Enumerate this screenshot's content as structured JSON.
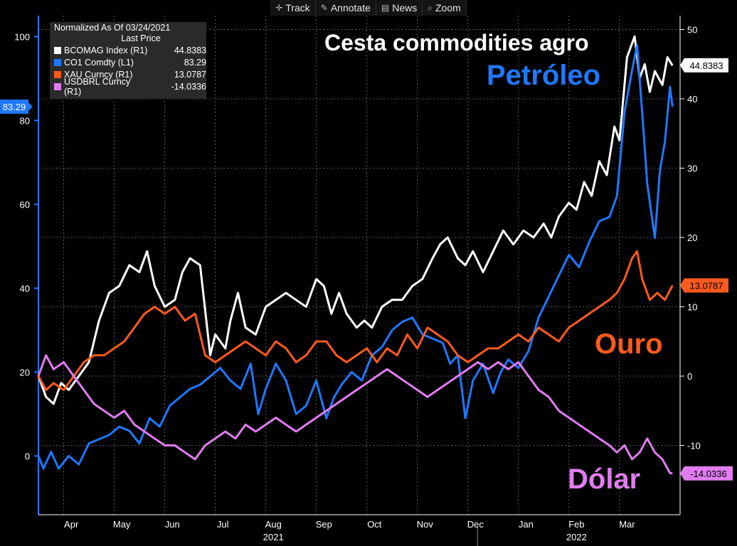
{
  "toolbar": {
    "track": "Track",
    "annotate": "Annotate",
    "news": "News",
    "zoom": "Zoom"
  },
  "legend": {
    "header": "Normalized As Of 03/24/2021",
    "subheader": "Last Price",
    "rows": [
      {
        "name": "BCOMAG Index  (R1)",
        "value": "44.8383",
        "color": "#ffffff"
      },
      {
        "name": "CO1 Comdty  (L1)",
        "value": "83.29",
        "color": "#1e78ff"
      },
      {
        "name": "XAU Curncy  (R1)",
        "value": "13.0787",
        "color": "#ff5a1f"
      },
      {
        "name": "USDBRL Curncy  (R1)",
        "value": "-14.0336",
        "color": "#e07cf0"
      }
    ]
  },
  "annotations": {
    "cesta": "Cesta commodities agro",
    "petroleo": "Petróleo",
    "ouro": "Ouro",
    "dolar": "Dólar"
  },
  "tags": {
    "left": "83.29",
    "bcomag": "44.8383",
    "xau": "13.0787",
    "usdbrl": "-14.0336"
  },
  "chart_data": {
    "type": "line",
    "left_axis": {
      "ticks": [
        0,
        20,
        40,
        60,
        80,
        100
      ],
      "range": [
        -14,
        105
      ]
    },
    "right_axis": {
      "ticks": [
        -10,
        0,
        10,
        20,
        30,
        40,
        50
      ],
      "range": [
        -20,
        52
      ]
    },
    "x_months": [
      "Apr",
      "May",
      "Jun",
      "Jul",
      "Aug",
      "Sep",
      "Oct",
      "Nov",
      "Dec",
      "Jan",
      "Feb",
      "Mar"
    ],
    "x_years": [
      "2021",
      "2022"
    ],
    "x_index_range": [
      0,
      12.7
    ],
    "series": [
      {
        "name": "BCOMAG Index  (R1)",
        "axis": "right",
        "color": "#ffffff",
        "points": [
          [
            0,
            0
          ],
          [
            0.15,
            -3
          ],
          [
            0.3,
            -4
          ],
          [
            0.45,
            -1
          ],
          [
            0.6,
            -2
          ],
          [
            0.8,
            0
          ],
          [
            1,
            2
          ],
          [
            1.2,
            8
          ],
          [
            1.4,
            12
          ],
          [
            1.6,
            13
          ],
          [
            1.8,
            16
          ],
          [
            2.0,
            15
          ],
          [
            2.15,
            18
          ],
          [
            2.3,
            13
          ],
          [
            2.5,
            10
          ],
          [
            2.7,
            11
          ],
          [
            2.85,
            15
          ],
          [
            3.0,
            17
          ],
          [
            3.2,
            16
          ],
          [
            3.4,
            3
          ],
          [
            3.5,
            6
          ],
          [
            3.7,
            4
          ],
          [
            3.8,
            8
          ],
          [
            3.95,
            12
          ],
          [
            4.1,
            7
          ],
          [
            4.3,
            6
          ],
          [
            4.5,
            10
          ],
          [
            4.7,
            11
          ],
          [
            4.9,
            12
          ],
          [
            5.1,
            11
          ],
          [
            5.3,
            10
          ],
          [
            5.5,
            14
          ],
          [
            5.65,
            13
          ],
          [
            5.8,
            9
          ],
          [
            5.95,
            12
          ],
          [
            6.1,
            9
          ],
          [
            6.3,
            7
          ],
          [
            6.45,
            8
          ],
          [
            6.6,
            7
          ],
          [
            6.8,
            10
          ],
          [
            7.0,
            11
          ],
          [
            7.2,
            11
          ],
          [
            7.4,
            13
          ],
          [
            7.6,
            14
          ],
          [
            7.8,
            17
          ],
          [
            7.95,
            19
          ],
          [
            8.1,
            20
          ],
          [
            8.3,
            17
          ],
          [
            8.45,
            16
          ],
          [
            8.6,
            18
          ],
          [
            8.8,
            15
          ],
          [
            9.0,
            18
          ],
          [
            9.2,
            21
          ],
          [
            9.4,
            19
          ],
          [
            9.6,
            21
          ],
          [
            9.8,
            20
          ],
          [
            10.0,
            22
          ],
          [
            10.15,
            20
          ],
          [
            10.3,
            23
          ],
          [
            10.5,
            25
          ],
          [
            10.65,
            24
          ],
          [
            10.8,
            28
          ],
          [
            10.95,
            26
          ],
          [
            11.1,
            31
          ],
          [
            11.25,
            29
          ],
          [
            11.4,
            36
          ],
          [
            11.5,
            34
          ],
          [
            11.65,
            46
          ],
          [
            11.8,
            49
          ],
          [
            11.9,
            43
          ],
          [
            12.0,
            45
          ],
          [
            12.1,
            41
          ],
          [
            12.2,
            44
          ],
          [
            12.35,
            42
          ],
          [
            12.45,
            46
          ],
          [
            12.55,
            44.8
          ]
        ]
      },
      {
        "name": "CO1 Comdty  (L1)",
        "axis": "left",
        "color": "#1e78ff",
        "points": [
          [
            0,
            0
          ],
          [
            0.1,
            -3
          ],
          [
            0.25,
            1
          ],
          [
            0.4,
            -3
          ],
          [
            0.6,
            0
          ],
          [
            0.8,
            -2
          ],
          [
            1.0,
            3
          ],
          [
            1.2,
            4
          ],
          [
            1.4,
            5
          ],
          [
            1.6,
            7
          ],
          [
            1.8,
            6
          ],
          [
            2.0,
            3
          ],
          [
            2.2,
            9
          ],
          [
            2.4,
            7
          ],
          [
            2.6,
            12
          ],
          [
            2.8,
            14
          ],
          [
            3.0,
            16
          ],
          [
            3.2,
            17
          ],
          [
            3.4,
            19
          ],
          [
            3.6,
            21
          ],
          [
            3.8,
            18
          ],
          [
            4.0,
            16
          ],
          [
            4.2,
            22
          ],
          [
            4.35,
            10
          ],
          [
            4.5,
            16
          ],
          [
            4.7,
            22
          ],
          [
            4.9,
            18
          ],
          [
            5.1,
            10
          ],
          [
            5.3,
            12
          ],
          [
            5.5,
            18
          ],
          [
            5.7,
            9
          ],
          [
            5.85,
            14
          ],
          [
            6.0,
            17
          ],
          [
            6.2,
            20
          ],
          [
            6.4,
            18
          ],
          [
            6.6,
            24
          ],
          [
            6.8,
            26
          ],
          [
            7.0,
            30
          ],
          [
            7.2,
            32
          ],
          [
            7.4,
            33
          ],
          [
            7.6,
            29
          ],
          [
            7.8,
            28
          ],
          [
            8.0,
            27
          ],
          [
            8.15,
            22
          ],
          [
            8.3,
            24
          ],
          [
            8.45,
            9
          ],
          [
            8.6,
            18
          ],
          [
            8.8,
            22
          ],
          [
            9.0,
            15
          ],
          [
            9.15,
            20
          ],
          [
            9.3,
            23
          ],
          [
            9.5,
            21
          ],
          [
            9.7,
            25
          ],
          [
            9.9,
            33
          ],
          [
            10.1,
            38
          ],
          [
            10.3,
            43
          ],
          [
            10.5,
            48
          ],
          [
            10.7,
            45
          ],
          [
            10.9,
            51
          ],
          [
            11.1,
            56
          ],
          [
            11.3,
            57
          ],
          [
            11.45,
            62
          ],
          [
            11.6,
            82
          ],
          [
            11.75,
            92
          ],
          [
            11.85,
            98
          ],
          [
            11.95,
            82
          ],
          [
            12.05,
            65
          ],
          [
            12.2,
            52
          ],
          [
            12.3,
            68
          ],
          [
            12.4,
            75
          ],
          [
            12.5,
            88
          ],
          [
            12.55,
            83.29
          ]
        ]
      },
      {
        "name": "XAU Curncy  (R1)",
        "axis": "right",
        "color": "#ff5a1f",
        "points": [
          [
            0,
            0
          ],
          [
            0.15,
            -2
          ],
          [
            0.3,
            -1
          ],
          [
            0.5,
            -2
          ],
          [
            0.7,
            0
          ],
          [
            0.9,
            2
          ],
          [
            1.1,
            3
          ],
          [
            1.3,
            3
          ],
          [
            1.5,
            4
          ],
          [
            1.7,
            5
          ],
          [
            1.9,
            7
          ],
          [
            2.1,
            9
          ],
          [
            2.3,
            10
          ],
          [
            2.5,
            9
          ],
          [
            2.7,
            10
          ],
          [
            2.9,
            8
          ],
          [
            3.1,
            9
          ],
          [
            3.3,
            3
          ],
          [
            3.5,
            2
          ],
          [
            3.7,
            3
          ],
          [
            3.9,
            4
          ],
          [
            4.1,
            5
          ],
          [
            4.3,
            4
          ],
          [
            4.5,
            3
          ],
          [
            4.7,
            5
          ],
          [
            4.9,
            4
          ],
          [
            5.1,
            2
          ],
          [
            5.3,
            3
          ],
          [
            5.5,
            5
          ],
          [
            5.7,
            5
          ],
          [
            5.9,
            3
          ],
          [
            6.1,
            2
          ],
          [
            6.3,
            3
          ],
          [
            6.5,
            4
          ],
          [
            6.7,
            2
          ],
          [
            6.9,
            4
          ],
          [
            7.1,
            3
          ],
          [
            7.3,
            6
          ],
          [
            7.5,
            4
          ],
          [
            7.7,
            7
          ],
          [
            7.9,
            6
          ],
          [
            8.1,
            5
          ],
          [
            8.3,
            3
          ],
          [
            8.5,
            2
          ],
          [
            8.7,
            3
          ],
          [
            8.9,
            4
          ],
          [
            9.1,
            4
          ],
          [
            9.3,
            5
          ],
          [
            9.5,
            6
          ],
          [
            9.7,
            5
          ],
          [
            9.9,
            7
          ],
          [
            10.1,
            6
          ],
          [
            10.3,
            5
          ],
          [
            10.5,
            7
          ],
          [
            10.7,
            8
          ],
          [
            10.9,
            9
          ],
          [
            11.1,
            10
          ],
          [
            11.3,
            11
          ],
          [
            11.45,
            12
          ],
          [
            11.6,
            14
          ],
          [
            11.75,
            17
          ],
          [
            11.85,
            18
          ],
          [
            11.95,
            14
          ],
          [
            12.1,
            11
          ],
          [
            12.25,
            12
          ],
          [
            12.4,
            11
          ],
          [
            12.55,
            13.08
          ]
        ]
      },
      {
        "name": "USDBRL Curncy  (R1)",
        "axis": "right",
        "color": "#e07cf0",
        "points": [
          [
            0,
            0
          ],
          [
            0.15,
            3
          ],
          [
            0.3,
            1
          ],
          [
            0.5,
            2
          ],
          [
            0.7,
            0
          ],
          [
            0.9,
            -2
          ],
          [
            1.1,
            -4
          ],
          [
            1.3,
            -5
          ],
          [
            1.5,
            -6
          ],
          [
            1.7,
            -5
          ],
          [
            1.9,
            -7
          ],
          [
            2.1,
            -8
          ],
          [
            2.3,
            -9
          ],
          [
            2.5,
            -10
          ],
          [
            2.7,
            -10
          ],
          [
            2.9,
            -11
          ],
          [
            3.1,
            -12
          ],
          [
            3.3,
            -10
          ],
          [
            3.5,
            -9
          ],
          [
            3.7,
            -8
          ],
          [
            3.9,
            -9
          ],
          [
            4.1,
            -7
          ],
          [
            4.3,
            -8
          ],
          [
            4.5,
            -7
          ],
          [
            4.7,
            -6
          ],
          [
            4.9,
            -7
          ],
          [
            5.1,
            -8
          ],
          [
            5.3,
            -7
          ],
          [
            5.5,
            -6
          ],
          [
            5.7,
            -5
          ],
          [
            5.9,
            -4
          ],
          [
            6.1,
            -3
          ],
          [
            6.3,
            -2
          ],
          [
            6.5,
            -1
          ],
          [
            6.7,
            0
          ],
          [
            6.9,
            1
          ],
          [
            7.1,
            0
          ],
          [
            7.3,
            -1
          ],
          [
            7.5,
            -2
          ],
          [
            7.7,
            -3
          ],
          [
            7.9,
            -2
          ],
          [
            8.1,
            -1
          ],
          [
            8.3,
            0
          ],
          [
            8.5,
            1
          ],
          [
            8.7,
            2
          ],
          [
            8.9,
            1
          ],
          [
            9.1,
            2
          ],
          [
            9.3,
            1
          ],
          [
            9.5,
            2
          ],
          [
            9.7,
            0
          ],
          [
            9.9,
            -2
          ],
          [
            10.1,
            -3
          ],
          [
            10.3,
            -5
          ],
          [
            10.5,
            -6
          ],
          [
            10.7,
            -7
          ],
          [
            10.9,
            -8
          ],
          [
            11.1,
            -9
          ],
          [
            11.3,
            -10
          ],
          [
            11.45,
            -11
          ],
          [
            11.6,
            -10
          ],
          [
            11.75,
            -12
          ],
          [
            11.9,
            -11
          ],
          [
            12.05,
            -9
          ],
          [
            12.2,
            -11
          ],
          [
            12.35,
            -12
          ],
          [
            12.5,
            -14
          ],
          [
            12.55,
            -14.03
          ]
        ]
      }
    ]
  }
}
